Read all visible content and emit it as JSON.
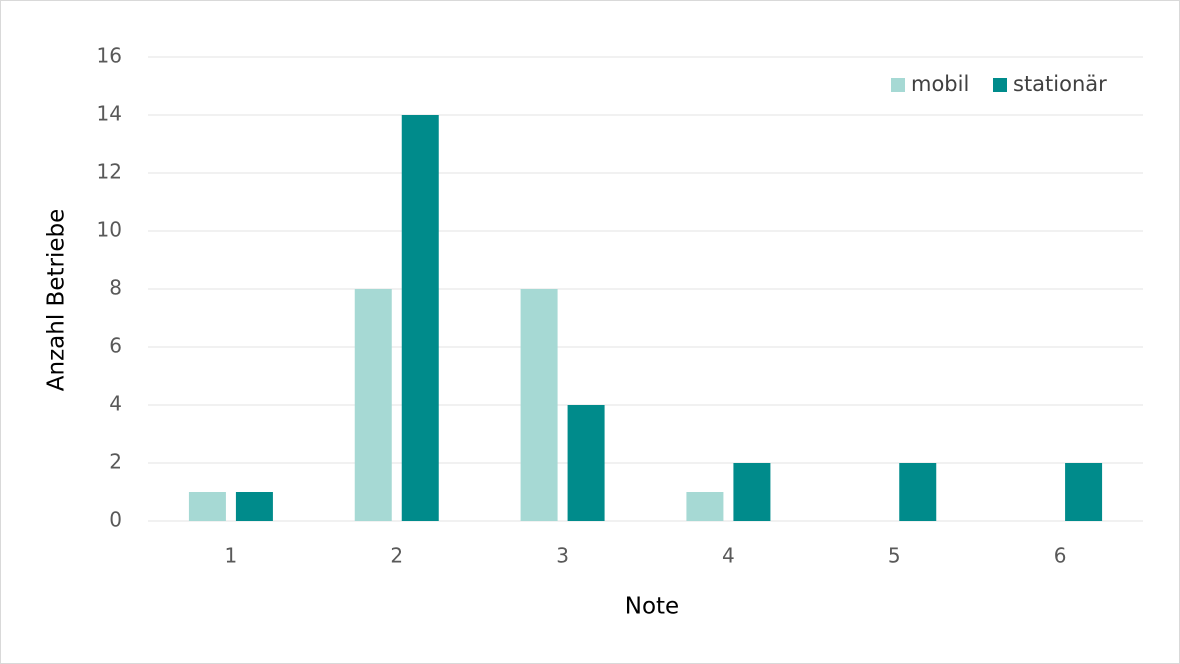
{
  "chart_data": {
    "type": "bar",
    "x_label": "Note",
    "y_label": "Anzahl Betriebe",
    "categories": [
      "1",
      "2",
      "3",
      "4",
      "5",
      "6"
    ],
    "series": [
      {
        "name": "mobil",
        "color": "#a6d9d4",
        "values": [
          1,
          8,
          8,
          1,
          0,
          0
        ]
      },
      {
        "name": "stationär",
        "color": "#008b8b",
        "values": [
          1,
          14,
          4,
          2,
          2,
          2
        ]
      }
    ],
    "ylim": [
      0,
      16
    ],
    "yticks": [
      0,
      2,
      4,
      6,
      8,
      10,
      12,
      14,
      16
    ],
    "grid": true,
    "legend": "upper right"
  }
}
